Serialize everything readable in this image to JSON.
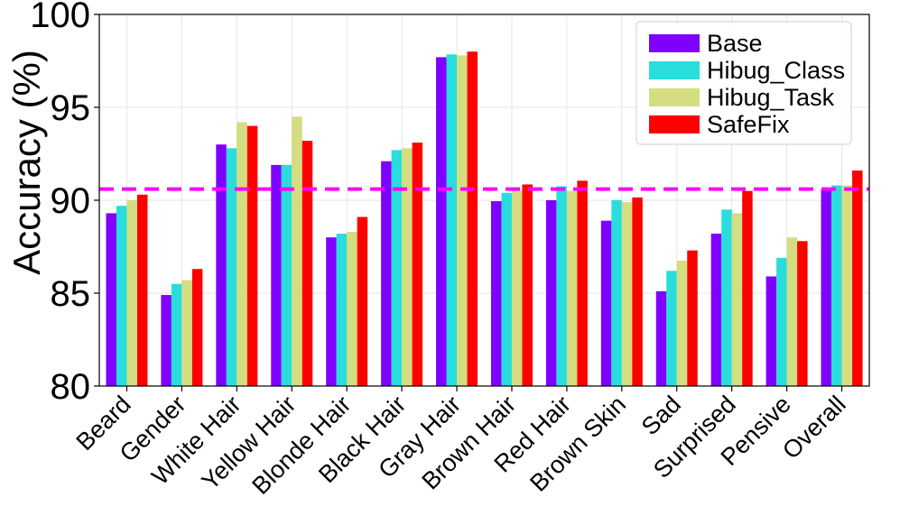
{
  "chart_data": {
    "type": "bar",
    "title": "",
    "xlabel": "",
    "ylabel": "Accuracy (%)",
    "ylim": [
      80,
      100
    ],
    "yticks": [
      80,
      85,
      90,
      95,
      100
    ],
    "grid": true,
    "legend_position": "top-right",
    "categories": [
      "Beard",
      "Gender",
      "White Hair",
      "Yellow Hair",
      "Blonde Hair",
      "Black Hair",
      "Gray Hair",
      "Brown Hair",
      "Red Hair",
      "Brown Skin",
      "Sad",
      "Surprised",
      "Pensive",
      "Overall"
    ],
    "series": [
      {
        "name": "Base",
        "color": "#7f00ff",
        "values": [
          89.3,
          84.9,
          93.0,
          91.9,
          88.0,
          92.1,
          97.7,
          89.95,
          90.0,
          88.9,
          85.1,
          88.2,
          85.9,
          90.6
        ]
      },
      {
        "name": "Hibug_Class",
        "color": "#2adddd",
        "values": [
          89.7,
          85.5,
          92.8,
          91.9,
          88.2,
          92.7,
          97.85,
          90.4,
          90.75,
          90.0,
          86.2,
          89.5,
          86.9,
          90.8
        ]
      },
      {
        "name": "Hibug_Task",
        "color": "#d4dd80",
        "values": [
          90.0,
          85.7,
          94.2,
          94.5,
          88.3,
          92.8,
          97.8,
          90.5,
          90.5,
          89.9,
          86.75,
          89.3,
          88.0,
          90.8
        ]
      },
      {
        "name": "SafeFix",
        "color": "#ff0000",
        "values": [
          90.3,
          86.3,
          94.0,
          93.2,
          89.1,
          93.1,
          98.0,
          90.85,
          91.05,
          90.15,
          87.3,
          90.5,
          87.8,
          91.6
        ]
      }
    ],
    "reference_line": {
      "value": 90.6,
      "color": "#ff00ff",
      "style": "dashed"
    }
  }
}
